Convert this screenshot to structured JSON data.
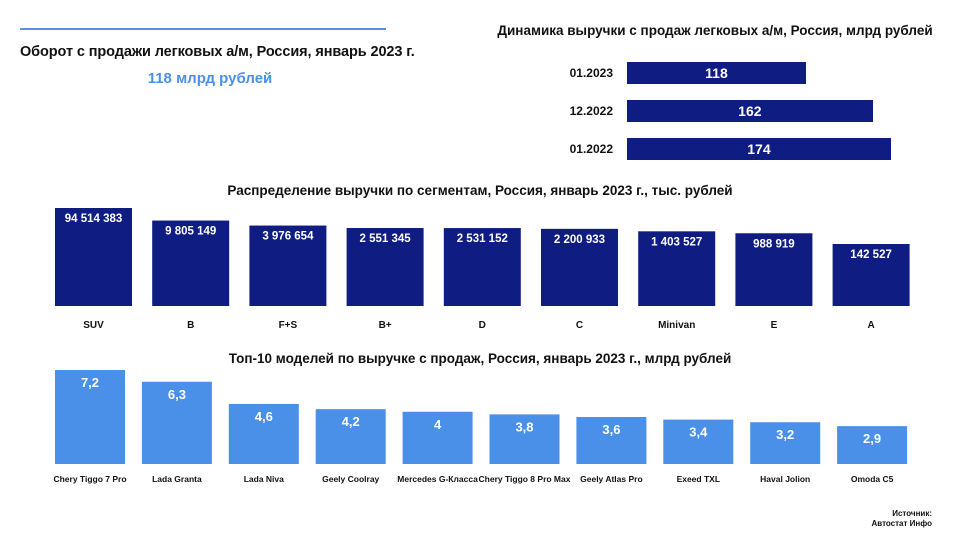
{
  "header": {
    "turnover_title": "Оборот с продажи легковых а/м, Россия, январь 2023 г.",
    "turnover_value": "118 млрд рублей"
  },
  "dynamics": {
    "title": "Динамика выручки с продаж легковых а/м, Россия, млрд рублей"
  },
  "segments": {
    "title": "Распределение выручки по сегментам, Россия, январь 2023 г., тыс. рублей"
  },
  "top_models": {
    "title": "Топ-10 моделей по выручке с продаж, Россия, январь 2023 г., млрд рублей"
  },
  "source": {
    "line1": "Источник:",
    "line2": "Автостат Инфо"
  },
  "colors": {
    "navy": "#0f1d82",
    "blue": "#4a90e8",
    "accent_line": "#5a8fe6"
  },
  "chart_data": [
    {
      "type": "bar",
      "orientation": "horizontal",
      "title": "Динамика выручки с продаж легковых а/м, Россия, млрд рублей",
      "categories": [
        "01.2023",
        "12.2022",
        "01.2022"
      ],
      "values": [
        118,
        162,
        174
      ],
      "value_labels": [
        "118",
        "162",
        "174"
      ],
      "xlim": [
        0,
        180
      ]
    },
    {
      "type": "bar",
      "title": "Распределение выручки по сегментам, Россия, январь 2023 г., тыс. рублей",
      "categories": [
        "SUV",
        "B",
        "F+S",
        "B+",
        "D",
        "C",
        "Minivan",
        "E",
        "A"
      ],
      "values": [
        94514383,
        9805149,
        3976654,
        2551345,
        2531152,
        2200933,
        1403527,
        988919,
        142527
      ],
      "value_labels": [
        "94 514 383",
        "9 805 149",
        "3 976 654",
        "2 551 345",
        "2 531 152",
        "2 200 933",
        "1 403 527",
        "988 919",
        "142 527"
      ],
      "scale": "compressed (bars not proportional to values)"
    },
    {
      "type": "bar",
      "title": "Топ-10 моделей по выручке с продаж, Россия, январь 2023 г., млрд рублей",
      "categories": [
        "Chery Tiggo 7 Pro",
        "Lada Granta",
        "Lada Niva",
        "Geely Coolray",
        "Mercedes G-Класса",
        "Chery Tiggo 8 Pro Max",
        "Geely Atlas Pro",
        "Exeed TXL",
        "Haval Jolion",
        "Omoda C5"
      ],
      "values": [
        7.2,
        6.3,
        4.6,
        4.2,
        4,
        3.8,
        3.6,
        3.4,
        3.2,
        2.9
      ],
      "value_labels": [
        "7,2",
        "6,3",
        "4,6",
        "4,2",
        "4",
        "3,8",
        "3,6",
        "3,4",
        "3,2",
        "2,9"
      ],
      "ylim": [
        0,
        7.2
      ]
    }
  ]
}
